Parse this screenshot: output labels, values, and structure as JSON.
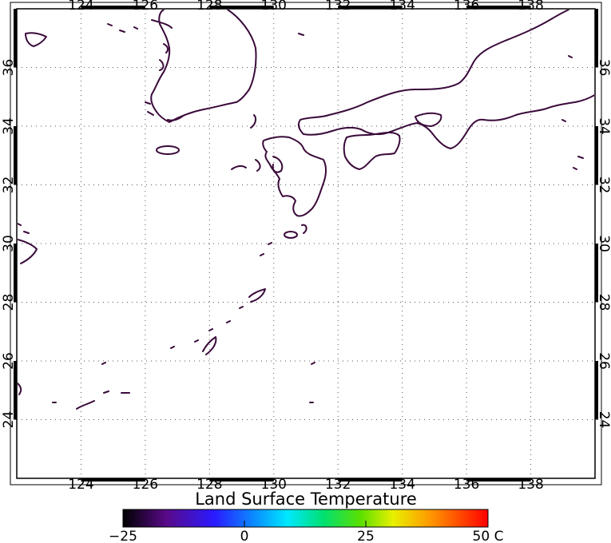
{
  "map": {
    "lon_range": [
      122,
      140
    ],
    "lat_range": [
      22,
      38
    ],
    "lon_ticks": [
      "124",
      "126",
      "128",
      "130",
      "132",
      "134",
      "136",
      "138"
    ],
    "lat_ticks": [
      "24",
      "26",
      "28",
      "30",
      "32",
      "34",
      "36"
    ],
    "coastline_color": "#3a0a3a",
    "grid": "dotted"
  },
  "colorbar": {
    "title": "Land Surface Temperature",
    "labels": [
      "−25",
      "0",
      "25",
      "50 C"
    ],
    "range": [
      -25,
      50
    ]
  }
}
